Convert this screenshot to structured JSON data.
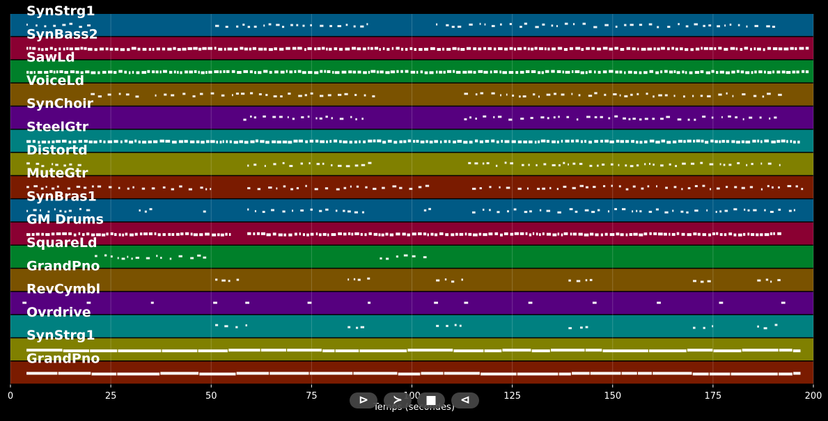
{
  "chart_data": {
    "type": "piano-roll",
    "xlabel": "Temps (secondes)",
    "xlim": [
      0,
      200
    ],
    "xticks": [
      0,
      25,
      50,
      75,
      100,
      125,
      150,
      175,
      200
    ],
    "grid": true,
    "tracks": [
      {
        "name": "SynStrg1",
        "color": "#005a85",
        "density": "sparse",
        "segments": [
          [
            4,
            20
          ],
          [
            51,
            90
          ],
          [
            106,
            192
          ]
        ]
      },
      {
        "name": "SynBass2",
        "color": "#8a0032",
        "density": "dense",
        "segments": [
          [
            4,
            200
          ]
        ]
      },
      {
        "name": "SawLd",
        "color": "#00802a",
        "density": "dense",
        "segments": [
          [
            4,
            199
          ]
        ]
      },
      {
        "name": "VoiceLd",
        "color": "#7a5200",
        "density": "sparse",
        "segments": [
          [
            20,
            33
          ],
          [
            36,
            92
          ],
          [
            113,
            193
          ]
        ]
      },
      {
        "name": "SynChoir",
        "color": "#56007f",
        "density": "sparse",
        "segments": [
          [
            58,
            88
          ],
          [
            113,
            193
          ]
        ]
      },
      {
        "name": "SteelGtr",
        "color": "#008080",
        "density": "dense",
        "segments": [
          [
            4,
            197
          ]
        ]
      },
      {
        "name": "Distortd",
        "color": "#808000",
        "density": "sparse",
        "segments": [
          [
            4,
            20
          ],
          [
            59,
            90
          ],
          [
            114,
            192
          ]
        ]
      },
      {
        "name": "MuteGtr",
        "color": "#7a1b00",
        "density": "sparse",
        "segments": [
          [
            4,
            51
          ],
          [
            59,
            106
          ],
          [
            115,
            198
          ]
        ]
      },
      {
        "name": "SynBras1",
        "color": "#005a85",
        "density": "sparse",
        "segments": [
          [
            4,
            20
          ],
          [
            32,
            36
          ],
          [
            48,
            50
          ],
          [
            59,
            90
          ],
          [
            103,
            106
          ],
          [
            115,
            197
          ]
        ]
      },
      {
        "name": "GM Drums",
        "color": "#8a0032",
        "density": "dense",
        "segments": [
          [
            4,
            55
          ],
          [
            59,
            193
          ]
        ]
      },
      {
        "name": "SquareLd",
        "color": "#00802a",
        "density": "sparse",
        "segments": [
          [
            21,
            51
          ],
          [
            92,
            106
          ]
        ]
      },
      {
        "name": "GrandPno",
        "color": "#7a5200",
        "density": "sparse",
        "segments": [
          [
            51,
            58
          ],
          [
            84,
            90
          ],
          [
            106,
            113
          ],
          [
            139,
            145
          ],
          [
            170,
            176
          ],
          [
            186,
            192
          ]
        ]
      },
      {
        "name": "RevCymbl",
        "color": "#56007f",
        "density": "cymbal",
        "segments": [
          [
            3,
            4
          ],
          [
            19,
            20
          ],
          [
            35,
            35.5
          ],
          [
            50.5,
            51.5
          ],
          [
            58.5,
            59.5
          ],
          [
            74,
            75
          ],
          [
            89,
            89.5
          ],
          [
            105.5,
            106.5
          ],
          [
            113,
            114
          ],
          [
            129,
            130
          ],
          [
            145,
            146
          ],
          [
            161,
            162
          ],
          [
            176.5,
            177.5
          ],
          [
            192,
            193
          ]
        ]
      },
      {
        "name": "Ovrdrive",
        "color": "#008080",
        "density": "sparse",
        "segments": [
          [
            51,
            59
          ],
          [
            84,
            90
          ],
          [
            106,
            114
          ],
          [
            139,
            145
          ],
          [
            170,
            176
          ],
          [
            186,
            192
          ]
        ]
      },
      {
        "name": "SynStrg1",
        "color": "#808000",
        "density": "long",
        "segments": [
          [
            4,
            197
          ]
        ]
      },
      {
        "name": "GrandPno",
        "color": "#7a1b00",
        "density": "long",
        "segments": [
          [
            4,
            197
          ]
        ]
      }
    ]
  },
  "playback": {
    "play_label": "⊳",
    "forward_label": "≻",
    "stop_label": "■",
    "rewind_label": "⊲"
  }
}
